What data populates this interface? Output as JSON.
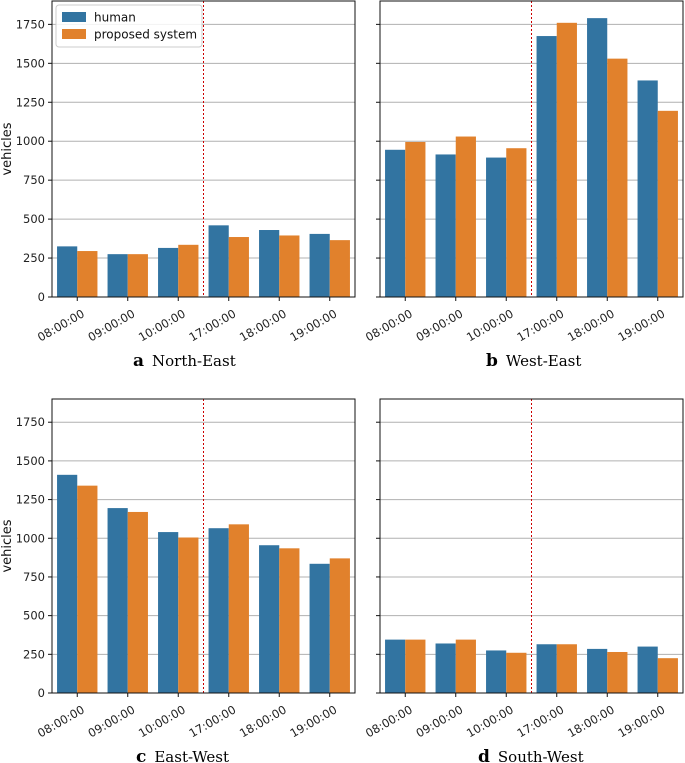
{
  "chart_data": [
    {
      "type": "bar",
      "panel": "a",
      "caption": "North-East",
      "categories": [
        "08:00:00",
        "09:00:00",
        "10:00:00",
        "17:00:00",
        "18:00:00",
        "19:00:00"
      ],
      "series": [
        {
          "name": "human",
          "color": "#3274a1",
          "values": [
            325,
            275,
            315,
            460,
            430,
            405
          ]
        },
        {
          "name": "proposed system",
          "color": "#e1812c",
          "values": [
            295,
            275,
            335,
            385,
            395,
            365
          ]
        }
      ],
      "ylabel": "vehicles",
      "ylim": [
        0,
        1900
      ],
      "yticks": [
        0,
        250,
        500,
        750,
        1000,
        1250,
        1500,
        1750
      ],
      "show_yticklabels": true,
      "grid": true,
      "legend": "top-left",
      "divider_after_index": 2
    },
    {
      "type": "bar",
      "panel": "b",
      "caption": "West-East",
      "categories": [
        "08:00:00",
        "09:00:00",
        "10:00:00",
        "17:00:00",
        "18:00:00",
        "19:00:00"
      ],
      "series": [
        {
          "name": "human",
          "color": "#3274a1",
          "values": [
            945,
            915,
            895,
            1675,
            1790,
            1390
          ]
        },
        {
          "name": "proposed system",
          "color": "#e1812c",
          "values": [
            995,
            1030,
            955,
            1760,
            1530,
            1195
          ]
        }
      ],
      "ylabel": "",
      "ylim": [
        0,
        1900
      ],
      "yticks": [
        0,
        250,
        500,
        750,
        1000,
        1250,
        1500,
        1750
      ],
      "show_yticklabels": false,
      "grid": true,
      "legend": "none",
      "divider_after_index": 2
    },
    {
      "type": "bar",
      "panel": "c",
      "caption": "East-West",
      "categories": [
        "08:00:00",
        "09:00:00",
        "10:00:00",
        "17:00:00",
        "18:00:00",
        "19:00:00"
      ],
      "series": [
        {
          "name": "human",
          "color": "#3274a1",
          "values": [
            1410,
            1195,
            1040,
            1065,
            955,
            835
          ]
        },
        {
          "name": "proposed system",
          "color": "#e1812c",
          "values": [
            1340,
            1170,
            1005,
            1090,
            935,
            870
          ]
        }
      ],
      "ylabel": "vehicles",
      "ylim": [
        0,
        1900
      ],
      "yticks": [
        0,
        250,
        500,
        750,
        1000,
        1250,
        1500,
        1750
      ],
      "show_yticklabels": true,
      "grid": true,
      "legend": "none",
      "divider_after_index": 2
    },
    {
      "type": "bar",
      "panel": "d",
      "caption": "South-West",
      "categories": [
        "08:00:00",
        "09:00:00",
        "10:00:00",
        "17:00:00",
        "18:00:00",
        "19:00:00"
      ],
      "series": [
        {
          "name": "human",
          "color": "#3274a1",
          "values": [
            345,
            320,
            275,
            315,
            285,
            300
          ]
        },
        {
          "name": "proposed system",
          "color": "#e1812c",
          "values": [
            345,
            345,
            260,
            315,
            265,
            225
          ]
        }
      ],
      "ylabel": "",
      "ylim": [
        0,
        1900
      ],
      "yticks": [
        0,
        250,
        500,
        750,
        1000,
        1250,
        1500,
        1750
      ],
      "show_yticklabels": false,
      "grid": true,
      "legend": "none",
      "divider_after_index": 2
    }
  ],
  "colors": {
    "human": "#3274a1",
    "proposed": "#e1812c",
    "divider": "#cc0000",
    "grid": "#b0b0b0"
  }
}
